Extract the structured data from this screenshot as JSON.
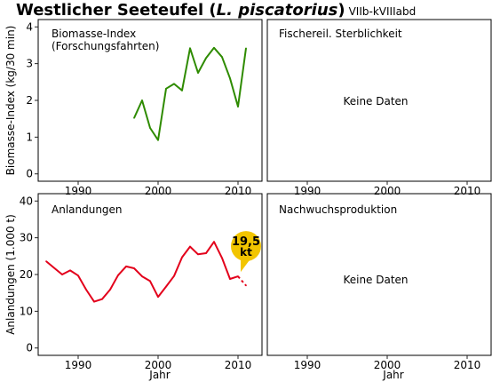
{
  "title": {
    "common_name": "Westlicher Seeteufel",
    "species_open": " (",
    "species_latin": "L. piscatorius",
    "species_close": ")",
    "region": "VIIb-kVIIIabd"
  },
  "colors": {
    "biomass": "#2e8b00",
    "landings": "#e3001b",
    "bubble": "#f2c500",
    "frame": "#000000",
    "tick": "#222222"
  },
  "chart_data": [
    {
      "type": "line",
      "panel": "top-left",
      "label_line1": "Biomasse-Index",
      "label_line2": "(Forschungsfahrten)",
      "ylabel": "Biomasse-Index (kg/30 min)",
      "xlabel": "",
      "xlim": [
        1985,
        2013
      ],
      "ylim": [
        -0.2,
        4.2
      ],
      "xticks": [
        "1990",
        "2000",
        "2010"
      ],
      "yticks": [
        "0",
        "1",
        "2",
        "3",
        "4"
      ],
      "series": [
        {
          "x": [
            1997,
            1998,
            1999,
            2000,
            2001,
            2002,
            2003,
            2004,
            2005,
            2006,
            2007,
            2008,
            2009,
            2010,
            2011
          ],
          "values": [
            1.52,
            2.0,
            1.25,
            0.92,
            2.32,
            2.45,
            2.27,
            3.42,
            2.75,
            3.15,
            3.43,
            3.18,
            2.6,
            1.83,
            3.42
          ]
        }
      ]
    },
    {
      "type": "line",
      "panel": "top-right",
      "label_line1": "Fischereil. Sterblichkeit",
      "no_data": "Keine Daten",
      "xlim": [
        1985,
        2013
      ],
      "xticks": [
        "1990",
        "2000",
        "2010"
      ]
    },
    {
      "type": "line",
      "panel": "bottom-left",
      "label_line1": "Anlandungen",
      "ylabel": "Anlandungen (1.000 t)",
      "xlabel": "Jahr",
      "xlim": [
        1985,
        2013
      ],
      "ylim": [
        -2,
        42
      ],
      "xticks": [
        "1990",
        "2000",
        "2010"
      ],
      "yticks": [
        "0",
        "10",
        "20",
        "30",
        "40"
      ],
      "series": [
        {
          "x": [
            1986,
            1987,
            1988,
            1989,
            1990,
            1991,
            1992,
            1993,
            1994,
            1995,
            1996,
            1997,
            1998,
            1999,
            2000,
            2001,
            2002,
            2003,
            2004,
            2005,
            2006,
            2007,
            2008,
            2009,
            2010
          ],
          "values": [
            23.6,
            21.8,
            20.0,
            21.1,
            19.7,
            15.9,
            12.6,
            13.3,
            15.9,
            19.8,
            22.2,
            21.7,
            19.5,
            18.2,
            13.9,
            16.7,
            19.6,
            24.7,
            27.6,
            25.5,
            25.8,
            28.9,
            24.5,
            18.8,
            19.5
          ]
        }
      ],
      "projection": {
        "x": [
          2010,
          2011
        ],
        "values": [
          19.5,
          17.0
        ]
      },
      "annotation": {
        "value_line": "19,5",
        "unit_line": "kt",
        "x": 2011,
        "y": 19.5
      }
    },
    {
      "type": "line",
      "panel": "bottom-right",
      "label_line1": "Nachwuchsproduktion",
      "no_data": "Keine Daten",
      "xlabel": "Jahr",
      "xlim": [
        1985,
        2013
      ],
      "xticks": [
        "1990",
        "2000",
        "2010"
      ]
    }
  ]
}
